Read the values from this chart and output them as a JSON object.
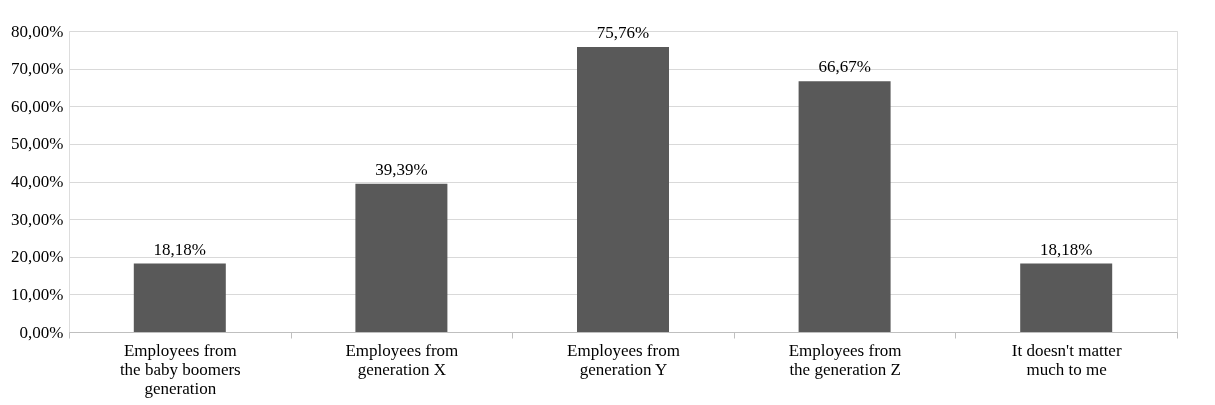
{
  "chart_data": {
    "type": "bar",
    "categories": [
      "Employees from the baby boomers generation",
      "Employees from generation X",
      "Employees from generation Y",
      "Employees from the generation Z",
      "It doesn't matter much to me"
    ],
    "values": [
      18.18,
      39.39,
      75.76,
      66.67,
      18.18
    ],
    "value_labels": [
      "18,18%",
      "39,39%",
      "75,76%",
      "66,67%",
      "18,18%"
    ],
    "color": "#595959",
    "ylim": [
      0,
      80
    ],
    "yticks": [
      {
        "value": 0,
        "label": "0,00%"
      },
      {
        "value": 10,
        "label": "10,00%"
      },
      {
        "value": 20,
        "label": "20,00%"
      },
      {
        "value": 30,
        "label": "30,00%"
      },
      {
        "value": 40,
        "label": "40,00%"
      },
      {
        "value": 50,
        "label": "50,00%"
      },
      {
        "value": 60,
        "label": "60,00%"
      },
      {
        "value": 70,
        "label": "70,00%"
      },
      {
        "value": 80,
        "label": "80,00%"
      }
    ],
    "grid": "y"
  }
}
